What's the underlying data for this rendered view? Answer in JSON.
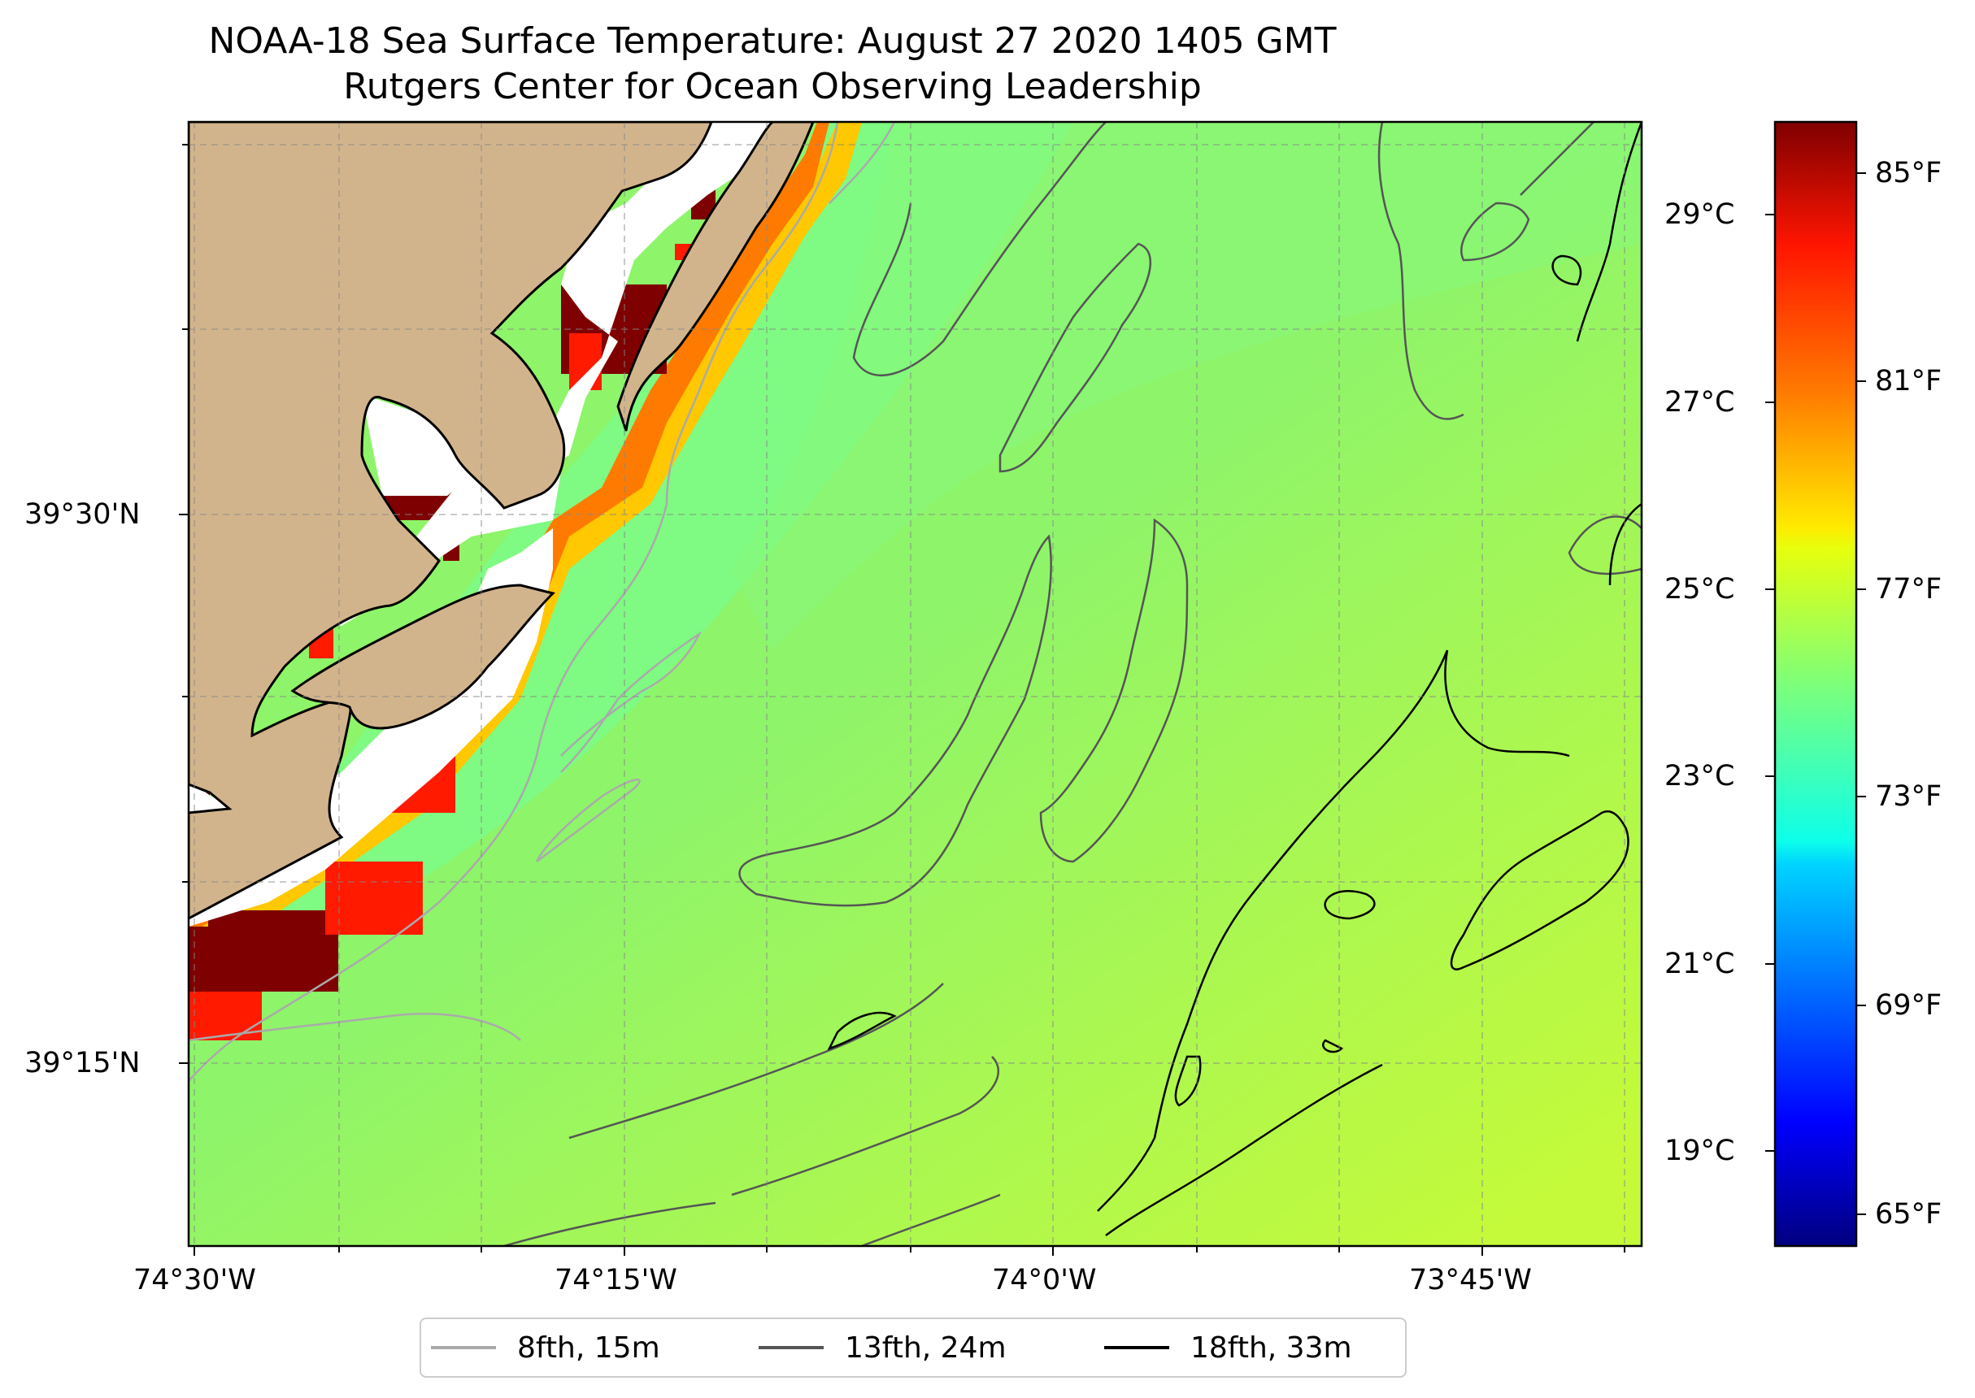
{
  "title": {
    "line1": "NOAA-18 Sea Surface Temperature: August 27 2020 1405 GMT",
    "line2": "Rutgers Center for Ocean Observing Leadership"
  },
  "axes": {
    "x_ticks": [
      "74°30'W",
      "74°15'W",
      "74°0'W",
      "73°45'W"
    ],
    "y_ticks": [
      "39°30'N",
      "39°15'N"
    ]
  },
  "colorbar": {
    "celsius_labels": [
      "29°C",
      "27°C",
      "25°C",
      "23°C",
      "21°C",
      "19°C"
    ],
    "fahrenheit_labels": [
      "85°F",
      "81°F",
      "77°F",
      "73°F",
      "69°F",
      "65°F"
    ],
    "colormap": "jet"
  },
  "legend": {
    "items": [
      {
        "label": "8fth, 15m",
        "color": "#aaaaaa"
      },
      {
        "label": "13fth, 24m",
        "color": "#555555"
      },
      {
        "label": "18fth, 33m",
        "color": "#000000"
      }
    ]
  },
  "colors": {
    "land": "#d2b48c",
    "sea_base": "#a6f050",
    "cool_band": "#7dfa83",
    "warm_coastal": "#ff6a00",
    "hot_coastal": "#7f0000"
  }
}
